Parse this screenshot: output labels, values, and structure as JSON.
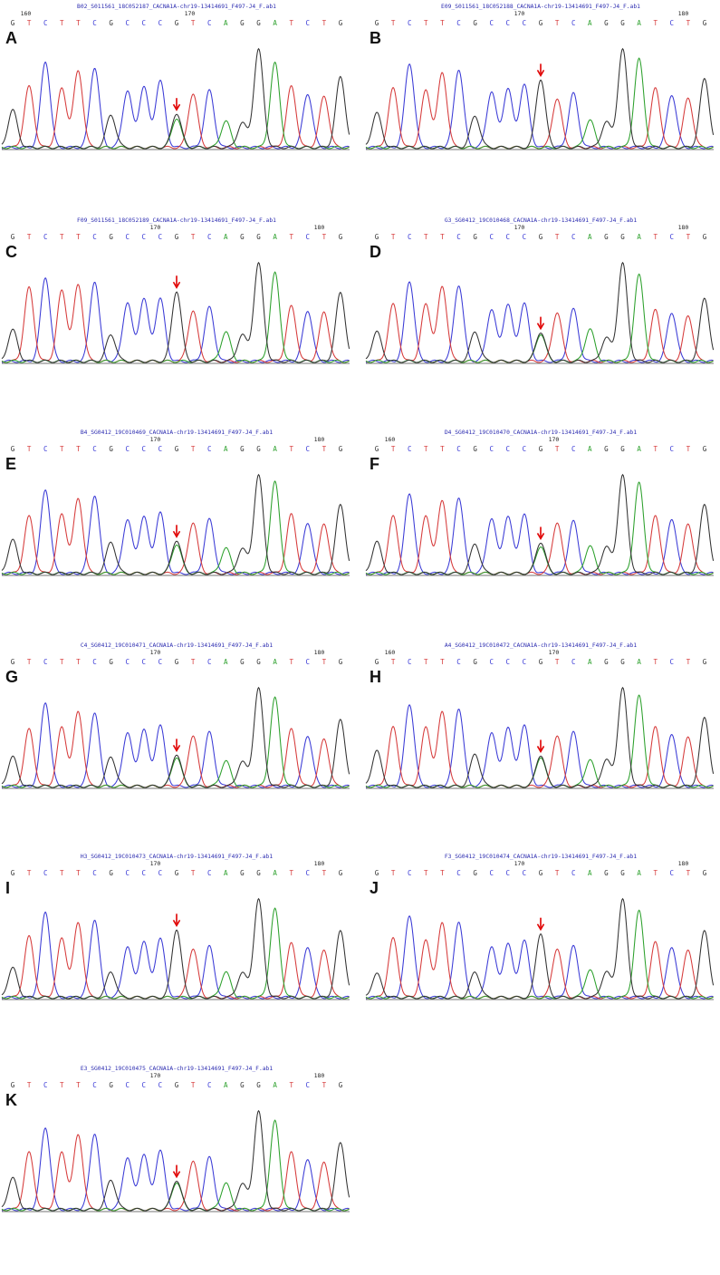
{
  "figure": {
    "colors": {
      "A": "#2ca02c",
      "C": "#3a3ad6",
      "G": "#333333",
      "T": "#d63a3a",
      "arrow": "#e00000"
    },
    "sequence": [
      "G",
      "T",
      "C",
      "T",
      "T",
      "C",
      "G",
      "C",
      "C",
      "C",
      "G",
      "T",
      "C",
      "A",
      "G",
      "G",
      "A",
      "T",
      "C",
      "T",
      "G"
    ]
  },
  "chart_data": [
    {
      "panel": "A",
      "type": "line",
      "title": "B02_S011561_18C052187_CACNA1A-chr19-13414691_F497-J4_F.ab1",
      "bases": [
        "G",
        "T",
        "C",
        "T",
        "T",
        "C",
        "G",
        "C",
        "C",
        "C",
        "G",
        "T",
        "C",
        "A",
        "G",
        "G",
        "A",
        "T",
        "C",
        "T",
        "G"
      ],
      "positions": [
        {
          "label": "160",
          "at": 0.8
        },
        {
          "label": "170",
          "at": 10.8
        }
      ],
      "heights": [
        0.38,
        0.62,
        0.88,
        0.6,
        0.78,
        0.82,
        0.33,
        0.58,
        0.62,
        0.68,
        0.35,
        0.55,
        0.58,
        0.27,
        0.25,
        1.0,
        0.86,
        0.62,
        0.55,
        0.52,
        0.72
      ],
      "mutant_index": 10,
      "minor_peak": "A",
      "minor_height": 0.3
    },
    {
      "panel": "B",
      "type": "line",
      "title": "E09_S011561_18C052188_CACNA1A-chr19-13414691_F497-J4_F.ab1",
      "bases": [
        "G",
        "T",
        "C",
        "T",
        "T",
        "C",
        "G",
        "C",
        "C",
        "C",
        "G",
        "T",
        "C",
        "A",
        "G",
        "G",
        "A",
        "T",
        "C",
        "T",
        "G"
      ],
      "positions": [
        {
          "label": "170",
          "at": 8.7
        },
        {
          "label": "180",
          "at": 18.7
        }
      ],
      "heights": [
        0.35,
        0.6,
        0.86,
        0.58,
        0.76,
        0.8,
        0.32,
        0.57,
        0.6,
        0.64,
        0.7,
        0.5,
        0.55,
        0.28,
        0.26,
        1.0,
        0.9,
        0.6,
        0.54,
        0.5,
        0.7
      ],
      "mutant_index": 10
    },
    {
      "panel": "C",
      "type": "line",
      "title": "F09_S011561_18C052189_CACNA1A-chr19-13414691_F497-J4_F.ab1",
      "bases": [
        "G",
        "T",
        "C",
        "T",
        "T",
        "C",
        "G",
        "C",
        "C",
        "C",
        "G",
        "T",
        "C",
        "A",
        "G",
        "G",
        "A",
        "T",
        "C",
        "T",
        "G"
      ],
      "positions": [
        {
          "label": "170",
          "at": 8.7
        },
        {
          "label": "180",
          "at": 18.7
        }
      ],
      "heights": [
        0.32,
        0.75,
        0.86,
        0.72,
        0.78,
        0.82,
        0.27,
        0.6,
        0.64,
        0.64,
        0.72,
        0.52,
        0.55,
        0.3,
        0.27,
        1.0,
        0.9,
        0.56,
        0.52,
        0.5,
        0.7
      ],
      "mutant_index": 10
    },
    {
      "panel": "D",
      "type": "line",
      "title": "G3_SG0412_19C010468_CACNA1A-chr19-13414691_F497-J4_F.ab1",
      "bases": [
        "G",
        "T",
        "C",
        "T",
        "T",
        "C",
        "G",
        "C",
        "C",
        "C",
        "G",
        "T",
        "C",
        "A",
        "G",
        "G",
        "A",
        "T",
        "C",
        "T",
        "G"
      ],
      "positions": [
        {
          "label": "170",
          "at": 8.7
        },
        {
          "label": "180",
          "at": 18.7
        }
      ],
      "heights": [
        0.3,
        0.58,
        0.82,
        0.58,
        0.76,
        0.78,
        0.3,
        0.53,
        0.58,
        0.59,
        0.3,
        0.5,
        0.53,
        0.33,
        0.24,
        1.0,
        0.88,
        0.52,
        0.5,
        0.46,
        0.64
      ],
      "mutant_index": 10,
      "minor_peak": "A",
      "minor_height": 0.28
    },
    {
      "panel": "E",
      "type": "line",
      "title": "B4_SG0412_19C010469_CACNA1A-chr19-13414691_F497-J4_F.ab1",
      "bases": [
        "G",
        "T",
        "C",
        "T",
        "T",
        "C",
        "G",
        "C",
        "C",
        "C",
        "G",
        "T",
        "C",
        "A",
        "G",
        "G",
        "A",
        "T",
        "C",
        "T",
        "G"
      ],
      "positions": [
        {
          "label": "170",
          "at": 8.7
        },
        {
          "label": "180",
          "at": 18.7
        }
      ],
      "heights": [
        0.34,
        0.58,
        0.86,
        0.6,
        0.76,
        0.8,
        0.32,
        0.55,
        0.58,
        0.62,
        0.34,
        0.52,
        0.55,
        0.26,
        0.25,
        1.0,
        0.93,
        0.6,
        0.52,
        0.5,
        0.7
      ],
      "mutant_index": 10,
      "minor_peak": "A",
      "minor_height": 0.3
    },
    {
      "panel": "F",
      "type": "line",
      "title": "D4_SG0412_19C010470_CACNA1A-chr19-13414691_F497-J4_F.ab1",
      "bases": [
        "G",
        "T",
        "C",
        "T",
        "T",
        "C",
        "G",
        "C",
        "C",
        "C",
        "G",
        "T",
        "C",
        "A",
        "G",
        "G",
        "A",
        "T",
        "C",
        "T",
        "G"
      ],
      "positions": [
        {
          "label": "160",
          "at": 0.8
        },
        {
          "label": "170",
          "at": 10.8
        }
      ],
      "heights": [
        0.32,
        0.58,
        0.82,
        0.58,
        0.74,
        0.78,
        0.3,
        0.56,
        0.58,
        0.6,
        0.32,
        0.52,
        0.53,
        0.28,
        0.27,
        1.0,
        0.92,
        0.58,
        0.56,
        0.5,
        0.7
      ],
      "mutant_index": 10,
      "minor_peak": "A",
      "minor_height": 0.28
    },
    {
      "panel": "G",
      "type": "line",
      "title": "C4_SG0412_19C010471_CACNA1A-chr19-13414691_F497-J4_F.ab1",
      "bases": [
        "G",
        "T",
        "C",
        "T",
        "T",
        "C",
        "G",
        "C",
        "C",
        "C",
        "G",
        "T",
        "C",
        "A",
        "G",
        "G",
        "A",
        "T",
        "C",
        "T",
        "G"
      ],
      "positions": [
        {
          "label": "170",
          "at": 8.7
        },
        {
          "label": "180",
          "at": 18.7
        }
      ],
      "heights": [
        0.3,
        0.58,
        0.86,
        0.6,
        0.76,
        0.76,
        0.3,
        0.55,
        0.58,
        0.62,
        0.33,
        0.52,
        0.55,
        0.26,
        0.25,
        1.0,
        0.9,
        0.58,
        0.52,
        0.48,
        0.68
      ],
      "mutant_index": 10,
      "minor_peak": "A",
      "minor_height": 0.3
    },
    {
      "panel": "H",
      "type": "line",
      "title": "A4_SG0412_19C010472_CACNA1A-chr19-13414691_F497-J4_F.ab1",
      "bases": [
        "G",
        "T",
        "C",
        "T",
        "T",
        "C",
        "G",
        "C",
        "C",
        "C",
        "G",
        "T",
        "C",
        "A",
        "G",
        "G",
        "A",
        "T",
        "C",
        "T",
        "G"
      ],
      "positions": [
        {
          "label": "160",
          "at": 0.8
        },
        {
          "label": "170",
          "at": 10.8
        }
      ],
      "heights": [
        0.36,
        0.6,
        0.84,
        0.6,
        0.76,
        0.8,
        0.33,
        0.55,
        0.6,
        0.62,
        0.32,
        0.52,
        0.55,
        0.27,
        0.27,
        1.0,
        0.92,
        0.6,
        0.54,
        0.5,
        0.7
      ],
      "mutant_index": 10,
      "minor_peak": "A",
      "minor_height": 0.3
    },
    {
      "panel": "I",
      "type": "line",
      "title": "H3_SG0412_19C010473_CACNA1A-chr19-13414691_F497-J4_F.ab1",
      "bases": [
        "G",
        "T",
        "C",
        "T",
        "T",
        "C",
        "G",
        "C",
        "C",
        "C",
        "G",
        "T",
        "C",
        "A",
        "G",
        "G",
        "A",
        "T",
        "C",
        "T",
        "G"
      ],
      "positions": [
        {
          "label": "170",
          "at": 8.7
        },
        {
          "label": "180",
          "at": 18.7
        }
      ],
      "heights": [
        0.3,
        0.62,
        0.88,
        0.6,
        0.76,
        0.8,
        0.26,
        0.52,
        0.57,
        0.6,
        0.7,
        0.5,
        0.52,
        0.26,
        0.25,
        1.0,
        0.9,
        0.55,
        0.52,
        0.48,
        0.68
      ],
      "mutant_index": 10
    },
    {
      "panel": "J",
      "type": "line",
      "title": "F3_SG0412_19C010474_CACNA1A-chr19-13414691_F497-J4_F.ab1",
      "bases": [
        "G",
        "T",
        "C",
        "T",
        "T",
        "C",
        "G",
        "C",
        "C",
        "C",
        "G",
        "T",
        "C",
        "A",
        "G",
        "G",
        "A",
        "T",
        "C",
        "T",
        "G"
      ],
      "positions": [
        {
          "label": "170",
          "at": 8.7
        },
        {
          "label": "180",
          "at": 18.7
        }
      ],
      "heights": [
        0.24,
        0.6,
        0.84,
        0.58,
        0.76,
        0.78,
        0.26,
        0.52,
        0.55,
        0.58,
        0.66,
        0.5,
        0.52,
        0.28,
        0.26,
        1.0,
        0.88,
        0.56,
        0.52,
        0.48,
        0.68
      ],
      "mutant_index": 10
    },
    {
      "panel": "K",
      "type": "line",
      "title": "E3_SG0412_19C010475_CACNA1A-chr19-13414691_F497-J4_F.ab1",
      "bases": [
        "G",
        "T",
        "C",
        "T",
        "T",
        "C",
        "G",
        "C",
        "C",
        "C",
        "G",
        "T",
        "C",
        "A",
        "G",
        "G",
        "A",
        "T",
        "C",
        "T",
        "G"
      ],
      "positions": [
        {
          "label": "170",
          "at": 8.7
        },
        {
          "label": "180",
          "at": 18.7
        }
      ],
      "heights": [
        0.32,
        0.58,
        0.84,
        0.58,
        0.76,
        0.78,
        0.3,
        0.53,
        0.56,
        0.6,
        0.3,
        0.5,
        0.53,
        0.27,
        0.26,
        1.0,
        0.9,
        0.58,
        0.52,
        0.48,
        0.68
      ],
      "mutant_index": 10,
      "minor_peak": "A",
      "minor_height": 0.28
    }
  ]
}
